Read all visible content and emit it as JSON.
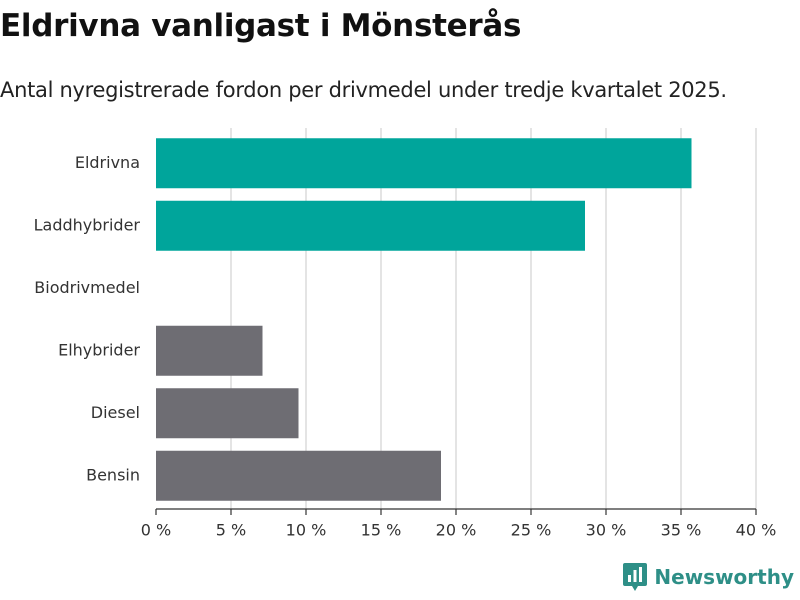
{
  "header": {
    "title": "Eldrivna vanligast i Mönsterås",
    "subtitle": "Antal nyregistrerade fordon per drivmedel under tredje kvartalet 2025."
  },
  "brand": {
    "name": "Newsworthy",
    "icon": "bar-chart-badge-icon",
    "color": "#2e8f87"
  },
  "chart_data": {
    "type": "bar",
    "orientation": "horizontal",
    "title": "Eldrivna vanligast i Mönsterås",
    "subtitle": "Antal nyregistrerade fordon per drivmedel under tredje kvartalet 2025.",
    "xlabel": "",
    "ylabel": "",
    "xlim": [
      0,
      40
    ],
    "ticks": [
      0,
      5,
      10,
      15,
      20,
      25,
      30,
      35,
      40
    ],
    "tick_labels": [
      "0 %",
      "5 %",
      "10 %",
      "15 %",
      "20 %",
      "25 %",
      "30 %",
      "35 %",
      "40 %"
    ],
    "grid": true,
    "categories": [
      "Eldrivna",
      "Laddhybrider",
      "Biodrivmedel",
      "Elhybrider",
      "Diesel",
      "Bensin"
    ],
    "values": [
      35.7,
      28.6,
      0,
      7.1,
      9.5,
      19.0
    ],
    "colors": [
      "#00a59b",
      "#00a59b",
      "#00a59b",
      "#6e6d73",
      "#6e6d73",
      "#6e6d73"
    ]
  }
}
